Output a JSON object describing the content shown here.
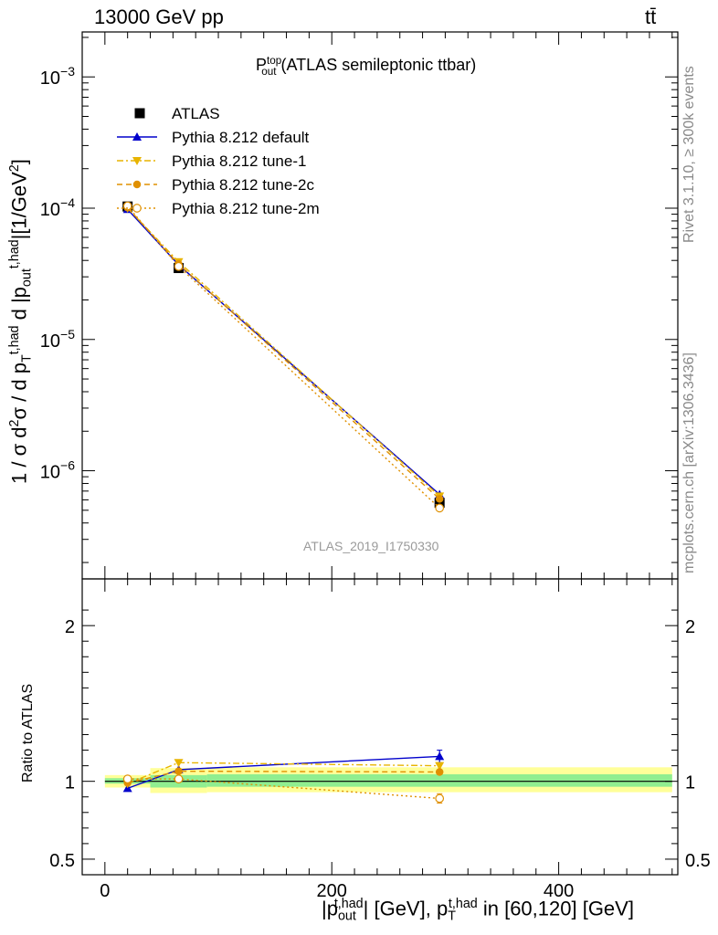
{
  "header": {
    "energy_label": "13000 GeV pp",
    "process_label": "tt̄"
  },
  "side": {
    "rivet_label": "Rivet 3.1.10, ≥ 300k events",
    "source_label": "mcplots.cern.ch [arXiv:1306.3436]"
  },
  "watermark": "ATLAS_2019_I1750330",
  "title": {
    "main": "P",
    "sup": "top",
    "sub": "out",
    "rest": " (ATLAS semileptonic ttbar)"
  },
  "ylabel_main": {
    "p1": "1 / σ d",
    "p1_sup": "2",
    "p2": "σ / d p",
    "p2_sub": "T",
    "p2_sup": "t,had",
    "p3": " d |p",
    "p3_sub": "out",
    "p3_sup": "t,had",
    "p4": "|[1/GeV",
    "p4_sup": "2",
    "p5": "]"
  },
  "ylabel_ratio": "Ratio to ATLAS",
  "xlabel": {
    "p1": "|p",
    "p1_sub": "out",
    "p1_sup": "t,had",
    "p2": "| [GeV], p",
    "p2_sub": "T",
    "p2_sup": "t,had",
    "p3": " in [60,120] [GeV]"
  },
  "chart_data": [
    {
      "panel": "main",
      "type": "scatter",
      "yscale": "log",
      "xlim": [
        -20,
        505
      ],
      "ylim": [
        1.5e-07,
        0.0022
      ],
      "y_ticks": [
        {
          "value": 1e-06,
          "mant": "10",
          "exp": "−6"
        },
        {
          "value": 1e-05,
          "mant": "10",
          "exp": "−5"
        },
        {
          "value": 0.0001,
          "mant": "10",
          "exp": "−4"
        },
        {
          "value": 0.001,
          "mant": "10",
          "exp": "−3"
        }
      ],
      "x_ticks": [
        0,
        200,
        400
      ],
      "x": [
        20,
        65,
        295
      ],
      "series": [
        {
          "name": "ATLAS",
          "color": "#000000",
          "marker": "square",
          "line": "none",
          "values": [
            0.000103,
            3.5e-05,
            5.7e-07
          ]
        },
        {
          "name": "Pythia 8.212 default",
          "color": "#0000cc",
          "marker": "triangle-up",
          "line": "solid",
          "values": [
            9.8e-05,
            3.7e-05,
            6.6e-07
          ]
        },
        {
          "name": "Pythia 8.212 tune-1",
          "color": "#e8b400",
          "marker": "triangle-down",
          "line": "dashdot",
          "values": [
            0.0001,
            3.9e-05,
            6.4e-07
          ]
        },
        {
          "name": "Pythia 8.212 tune-2c",
          "color": "#e09000",
          "marker": "circle",
          "line": "dashed",
          "values": [
            0.000101,
            3.75e-05,
            6.1e-07
          ]
        },
        {
          "name": "Pythia 8.212 tune-2m",
          "color": "#e09000",
          "marker": "circle-open",
          "line": "dotted",
          "values": [
            0.000104,
            3.6e-05,
            5.2e-07
          ]
        }
      ]
    },
    {
      "panel": "ratio",
      "type": "line",
      "ylabel": "Ratio to ATLAS",
      "xlim": [
        -20,
        505
      ],
      "ylim": [
        0.4,
        2.3
      ],
      "y_ticks": [
        0.5,
        1,
        2
      ],
      "y_tick_labels": [
        "0.5",
        "1",
        "2"
      ],
      "x_ticks": [
        0,
        200,
        400
      ],
      "x_tick_labels": [
        "0",
        "200",
        "400"
      ],
      "x": [
        20,
        65,
        295
      ],
      "uncertainty_bands": [
        {
          "x0": 0,
          "x1": 40,
          "stat_lo": 0.985,
          "stat_hi": 1.02,
          "tot_lo": 0.96,
          "tot_hi": 1.04
        },
        {
          "x0": 40,
          "x1": 90,
          "stat_lo": 0.96,
          "stat_hi": 1.04,
          "tot_lo": 0.925,
          "tot_hi": 1.085
        },
        {
          "x0": 90,
          "x1": 500,
          "stat_lo": 0.965,
          "stat_hi": 1.045,
          "tot_lo": 0.93,
          "tot_hi": 1.09
        }
      ],
      "series": [
        {
          "name": "Pythia 8.212 default",
          "color": "#0000cc",
          "marker": "triangle-up",
          "line": "solid",
          "values": [
            0.955,
            1.075,
            1.16
          ],
          "err": [
            0,
            0,
            0.04
          ]
        },
        {
          "name": "Pythia 8.212 tune-1",
          "color": "#e8b400",
          "marker": "triangle-down",
          "line": "dashdot",
          "values": [
            0.985,
            1.12,
            1.1
          ],
          "err": [
            0,
            0,
            0
          ]
        },
        {
          "name": "Pythia 8.212 tune-2c",
          "color": "#e09000",
          "marker": "circle",
          "line": "dashed",
          "values": [
            0.99,
            1.065,
            1.06
          ],
          "err": [
            0,
            0,
            0
          ]
        },
        {
          "name": "Pythia 8.212 tune-2m",
          "color": "#e09000",
          "marker": "circle-open",
          "line": "dotted",
          "values": [
            1.015,
            1.015,
            0.89
          ],
          "err": [
            0,
            0,
            0.03
          ]
        }
      ]
    }
  ]
}
